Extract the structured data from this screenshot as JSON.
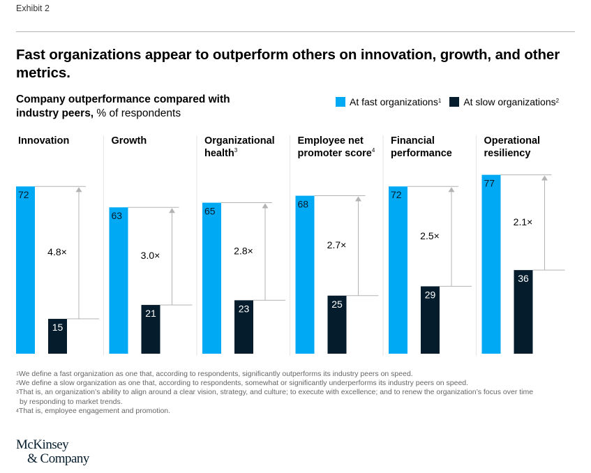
{
  "exhibit_label": "Exhibit 2",
  "title": "Fast organizations appear to outperform others on innovation, growth, and other metrics.",
  "subtitle": {
    "bold": "Company outperformance compared with industry peers,",
    "normal": " % of respondents"
  },
  "legend": [
    {
      "label": "At fast organizations",
      "sup": "1",
      "color": "#00a9f4"
    },
    {
      "label": "At slow organizations",
      "sup": "2",
      "color": "#051c2c"
    }
  ],
  "colors": {
    "fast": "#00a9f4",
    "slow": "#051c2c",
    "guide": "#b3b3b3",
    "divider": "#e6e6e6"
  },
  "chart_data": {
    "type": "bar",
    "title": "Fast organizations appear to outperform others on innovation, growth, and other metrics.",
    "ylabel": "% of respondents",
    "ylim": [
      0,
      100
    ],
    "grid": false,
    "legend_position": "top-right",
    "categories": [
      {
        "line1": "Innovation",
        "line2": "",
        "sup": ""
      },
      {
        "line1": "Growth",
        "line2": "",
        "sup": ""
      },
      {
        "line1": "Organizational",
        "line2": "health",
        "sup": "3"
      },
      {
        "line1": "Employee net",
        "line2": "promoter score",
        "sup": "4"
      },
      {
        "line1": "Financial",
        "line2": "performance",
        "sup": ""
      },
      {
        "line1": "Operational",
        "line2": "resiliency",
        "sup": ""
      }
    ],
    "series": [
      {
        "name": "At fast organizations",
        "values": [
          72,
          63,
          65,
          68,
          72,
          77
        ]
      },
      {
        "name": "At slow organizations",
        "values": [
          15,
          21,
          23,
          25,
          29,
          36
        ]
      }
    ],
    "multipliers": [
      "4.8×",
      "3.0×",
      "2.8×",
      "2.7×",
      "2.5×",
      "2.1×"
    ]
  },
  "footnotes": [
    {
      "sup": "1",
      "text": "We define a fast organization as one that, according to respondents, significantly outperforms its industry peers on speed."
    },
    {
      "sup": "2",
      "text": "We define a slow organization as one that, according to respondents, somewhat or significantly underperforms its industry peers on speed."
    },
    {
      "sup": "3",
      "text": "That is, an organization’s ability to align around a clear vision, strategy, and culture; to execute with excellence; and to renew the organization’s focus over time",
      "cont": "by responding to market trends."
    },
    {
      "sup": "4",
      "text": "That is, employee engagement and promotion."
    }
  ],
  "logo": {
    "line1": "McKinsey",
    "line2": "& Company"
  }
}
